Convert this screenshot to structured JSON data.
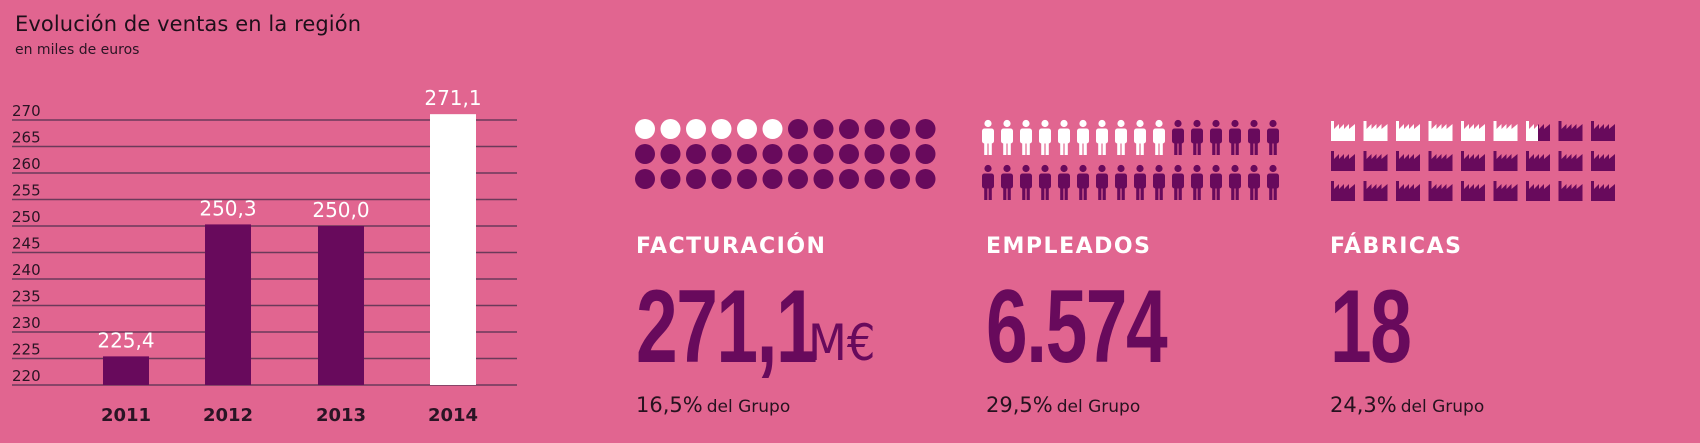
{
  "header": {
    "title": "Evolución de ventas en la región",
    "subtitle": "en miles de euros"
  },
  "colors": {
    "background": "#e16590",
    "bar": "#680a5c",
    "highlight_bar": "#ffffff",
    "grid": "#6b3a5a"
  },
  "chart_data": {
    "type": "bar",
    "title": "Evolución de ventas en la región",
    "subtitle": "en miles de euros",
    "categories": [
      "2011",
      "2012",
      "2013",
      "2014"
    ],
    "values": [
      225.4,
      250.3,
      250.0,
      271.1
    ],
    "value_labels": [
      "225,4",
      "250,3",
      "250,0",
      "271,1"
    ],
    "highlight_index": 3,
    "ylim": [
      220,
      270
    ],
    "yticks": [
      220,
      225,
      230,
      235,
      240,
      245,
      250,
      255,
      260,
      265,
      270
    ],
    "grid": true,
    "legend": "none"
  },
  "stats": [
    {
      "icon": "circle",
      "icon_total": 36,
      "icon_highlighted": 6,
      "heading": "FACTURACIÓN",
      "value": "271,1",
      "unit": "M€",
      "percent": "16,5%",
      "suffix": "del Grupo"
    },
    {
      "icon": "person",
      "icon_total": 32,
      "icon_highlighted": 10,
      "heading": "EMPLEADOS",
      "value": "6.574",
      "unit": "",
      "percent": "29,5%",
      "suffix": "del Grupo"
    },
    {
      "icon": "factory",
      "icon_total": 27,
      "icon_highlighted": 6.5,
      "heading": "FÁBRICAS",
      "value": "18",
      "unit": "",
      "percent": "24,3%",
      "suffix": "del Grupo"
    }
  ]
}
